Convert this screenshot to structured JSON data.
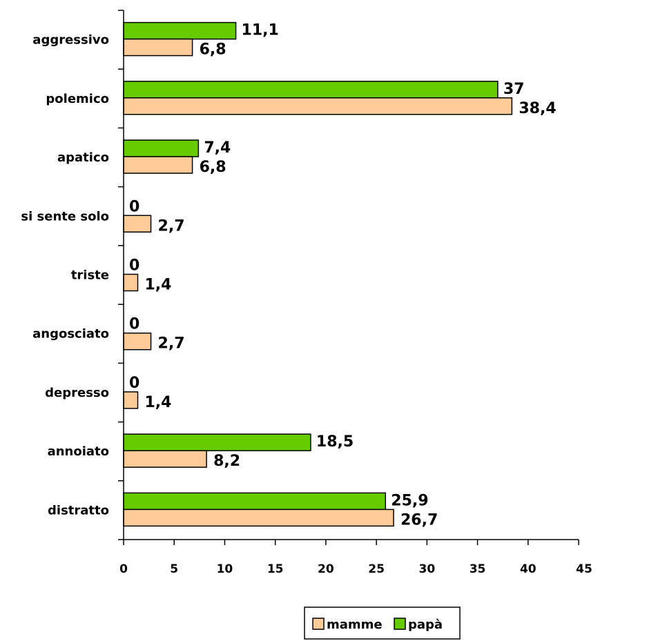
{
  "chart_data": {
    "type": "bar",
    "orientation": "horizontal",
    "categories": [
      "aggressivo",
      "polemico",
      "apatico",
      "si sente solo",
      "triste",
      "angosciato",
      "depresso",
      "annoiato",
      "distratto"
    ],
    "series": [
      {
        "name": "mamme",
        "color": "#ffcc99",
        "values": [
          6.8,
          38.4,
          6.8,
          2.7,
          1.4,
          2.7,
          1.4,
          8.2,
          26.7
        ],
        "labels": [
          "6,8",
          "38,4",
          "6,8",
          "2,7",
          "1,4",
          "2,7",
          "1,4",
          "8,2",
          "26,7"
        ]
      },
      {
        "name": "papà",
        "color": "#66cc00",
        "values": [
          11.1,
          37,
          7.4,
          0,
          0,
          0,
          0,
          18.5,
          25.9
        ],
        "labels": [
          "11,1",
          "37",
          "7,4",
          "0",
          "0",
          "0",
          "0",
          "18,5",
          "25,9"
        ]
      }
    ],
    "xlim": [
      0,
      45
    ],
    "xticks": [
      0,
      5,
      10,
      15,
      20,
      25,
      30,
      35,
      40,
      45
    ],
    "title": "",
    "xlabel": "",
    "ylabel": "",
    "grid": false,
    "legend_position": "bottom"
  }
}
